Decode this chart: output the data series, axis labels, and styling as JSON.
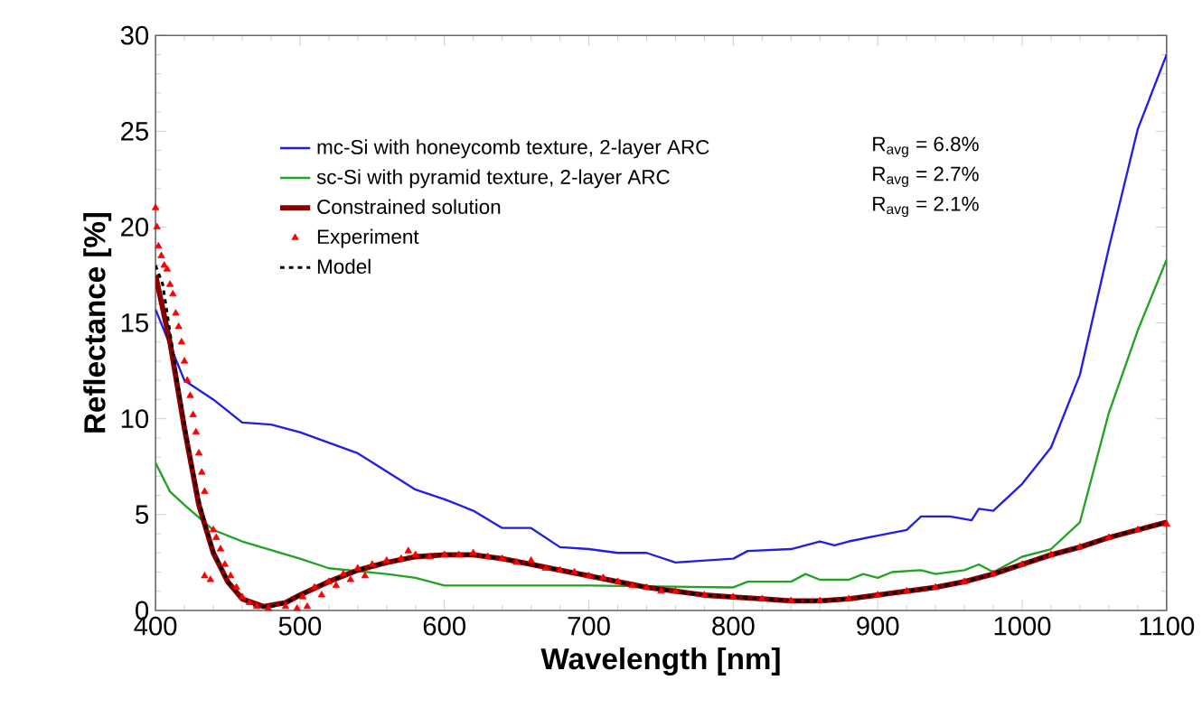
{
  "chart_data": {
    "type": "line",
    "xlabel": "Wavelength [nm]",
    "ylabel": "Reflectance [%]",
    "xlim": [
      400,
      1100
    ],
    "ylim": [
      0,
      30
    ],
    "xticks": [
      400,
      500,
      600,
      700,
      800,
      900,
      1000,
      1100
    ],
    "yticks": [
      0,
      5,
      10,
      15,
      20,
      25,
      30
    ],
    "grid": false,
    "legend": "top",
    "annotations": [
      "R$_{avg}$ = 6.8%",
      "R$_{avg}$ = 2.7%",
      "R$_{avg}$ = 2.1%"
    ],
    "series": [
      {
        "name": "mc-Si with honeycomb texture, 2-layer ARC",
        "color": "#1f1fe6",
        "x": [
          400,
          420,
          440,
          460,
          480,
          500,
          540,
          580,
          600,
          620,
          640,
          660,
          680,
          700,
          720,
          740,
          760,
          800,
          810,
          840,
          860,
          870,
          880,
          900,
          920,
          930,
          950,
          965,
          970,
          980,
          1000,
          1020,
          1040,
          1060,
          1080,
          1100
        ],
        "values": [
          15.7,
          12,
          11,
          9.8,
          9.7,
          9.3,
          8.2,
          6.3,
          5.8,
          5.2,
          4.3,
          4.3,
          3.3,
          3.2,
          3.0,
          3.0,
          2.5,
          2.7,
          3.1,
          3.2,
          3.6,
          3.4,
          3.6,
          3.9,
          4.2,
          4.9,
          4.9,
          4.7,
          5.3,
          5.2,
          6.6,
          8.5,
          12.3,
          18.9,
          25.1,
          29.0
        ]
      },
      {
        "name": "sc-Si with pyramid texture, 2-layer ARC",
        "color": "#22a322",
        "x": [
          400,
          410,
          420,
          440,
          460,
          500,
          520,
          560,
          580,
          600,
          700,
          800,
          810,
          840,
          850,
          860,
          880,
          890,
          900,
          910,
          930,
          940,
          960,
          970,
          980,
          990,
          1000,
          1020,
          1040,
          1060,
          1080,
          1100
        ],
        "values": [
          7.7,
          6.2,
          5.5,
          4.2,
          3.6,
          2.7,
          2.2,
          1.9,
          1.7,
          1.3,
          1.3,
          1.2,
          1.5,
          1.5,
          1.9,
          1.6,
          1.6,
          1.9,
          1.7,
          2.0,
          2.1,
          1.9,
          2.1,
          2.4,
          2.0,
          2.4,
          2.8,
          3.2,
          4.6,
          10.3,
          14.6,
          18.3
        ]
      },
      {
        "name": "Constrained solution",
        "color": "#8b0000",
        "x": [
          400,
          410,
          420,
          430,
          440,
          450,
          460,
          475,
          490,
          500,
          520,
          540,
          560,
          580,
          600,
          620,
          640,
          660,
          680,
          700,
          720,
          740,
          760,
          780,
          800,
          820,
          840,
          860,
          880,
          900,
          920,
          940,
          960,
          980,
          1000,
          1020,
          1040,
          1060,
          1080,
          1100
        ],
        "values": [
          17.5,
          14,
          9.5,
          5.5,
          3,
          1.5,
          0.6,
          0.2,
          0.4,
          0.8,
          1.5,
          2.1,
          2.5,
          2.8,
          2.9,
          2.9,
          2.7,
          2.4,
          2.1,
          1.8,
          1.5,
          1.2,
          1.0,
          0.8,
          0.7,
          0.6,
          0.5,
          0.5,
          0.6,
          0.8,
          1.0,
          1.2,
          1.5,
          1.9,
          2.4,
          2.9,
          3.3,
          3.8,
          4.2,
          4.6
        ]
      },
      {
        "name": "Experiment",
        "type": "scatter",
        "marker": "triangle",
        "color": "#ff0000",
        "x": [
          400,
          401,
          402,
          404,
          406,
          408,
          410,
          412,
          414,
          416,
          418,
          420,
          422,
          424,
          426,
          428,
          430,
          432,
          434,
          434,
          438,
          440,
          442,
          445,
          448,
          452,
          456,
          460,
          465,
          470,
          478,
          490,
          498,
          502,
          505,
          510,
          515,
          520,
          525,
          530,
          535,
          540,
          545,
          550,
          560,
          570,
          575,
          580,
          590,
          600,
          610,
          620,
          630,
          640,
          650,
          660,
          670,
          680,
          690,
          700,
          710,
          720,
          730,
          740,
          750,
          760,
          780,
          800,
          820,
          840,
          860,
          880,
          900,
          920,
          940,
          960,
          980,
          1000,
          1020,
          1040,
          1060,
          1080,
          1100
        ],
        "values": [
          21,
          20,
          19,
          18.5,
          18,
          17.8,
          17,
          16.5,
          15.5,
          14.8,
          14,
          13,
          12,
          11.2,
          10.2,
          9.3,
          8.2,
          7.2,
          6.2,
          1.8,
          1.6,
          4.2,
          3.8,
          3.2,
          2.4,
          1.8,
          1.2,
          0.7,
          0.4,
          0.2,
          0.1,
          0.2,
          0.1,
          0.7,
          0.2,
          1.2,
          0.8,
          1.5,
          1.3,
          1.9,
          1.6,
          2.2,
          1.8,
          2.4,
          2.6,
          2.7,
          3.1,
          2.9,
          2.8,
          2.9,
          2.9,
          3.0,
          2.8,
          2.7,
          2.5,
          2.6,
          2.2,
          2.1,
          2.0,
          1.8,
          1.7,
          1.5,
          1.3,
          1.2,
          1.0,
          1.0,
          0.8,
          0.7,
          0.6,
          0.5,
          0.5,
          0.6,
          0.8,
          1.0,
          1.2,
          1.5,
          1.9,
          2.4,
          2.9,
          3.3,
          3.8,
          4.2,
          4.5
        ]
      },
      {
        "name": "Model",
        "color": "#000000",
        "line_style": "dotted",
        "x": [
          400,
          405,
          410,
          415,
          420,
          425,
          430,
          435,
          440,
          450,
          460,
          470,
          480,
          490,
          500,
          520,
          540,
          560,
          580,
          600,
          620,
          640,
          660,
          680,
          700,
          720,
          740,
          760,
          780,
          800,
          820,
          840,
          860,
          880,
          900,
          920,
          940,
          960,
          980,
          1000,
          1020,
          1040,
          1060,
          1080,
          1100
        ],
        "values": [
          18,
          17,
          14.5,
          12,
          9.8,
          7.6,
          5.8,
          4.3,
          3.1,
          1.5,
          0.6,
          0.2,
          0.2,
          0.4,
          0.8,
          1.5,
          2.1,
          2.5,
          2.8,
          2.9,
          2.9,
          2.7,
          2.4,
          2.1,
          1.8,
          1.5,
          1.2,
          1.0,
          0.8,
          0.7,
          0.6,
          0.5,
          0.5,
          0.6,
          0.8,
          1.0,
          1.2,
          1.5,
          1.9,
          2.4,
          2.9,
          3.3,
          3.8,
          4.2,
          4.6
        ]
      }
    ]
  }
}
